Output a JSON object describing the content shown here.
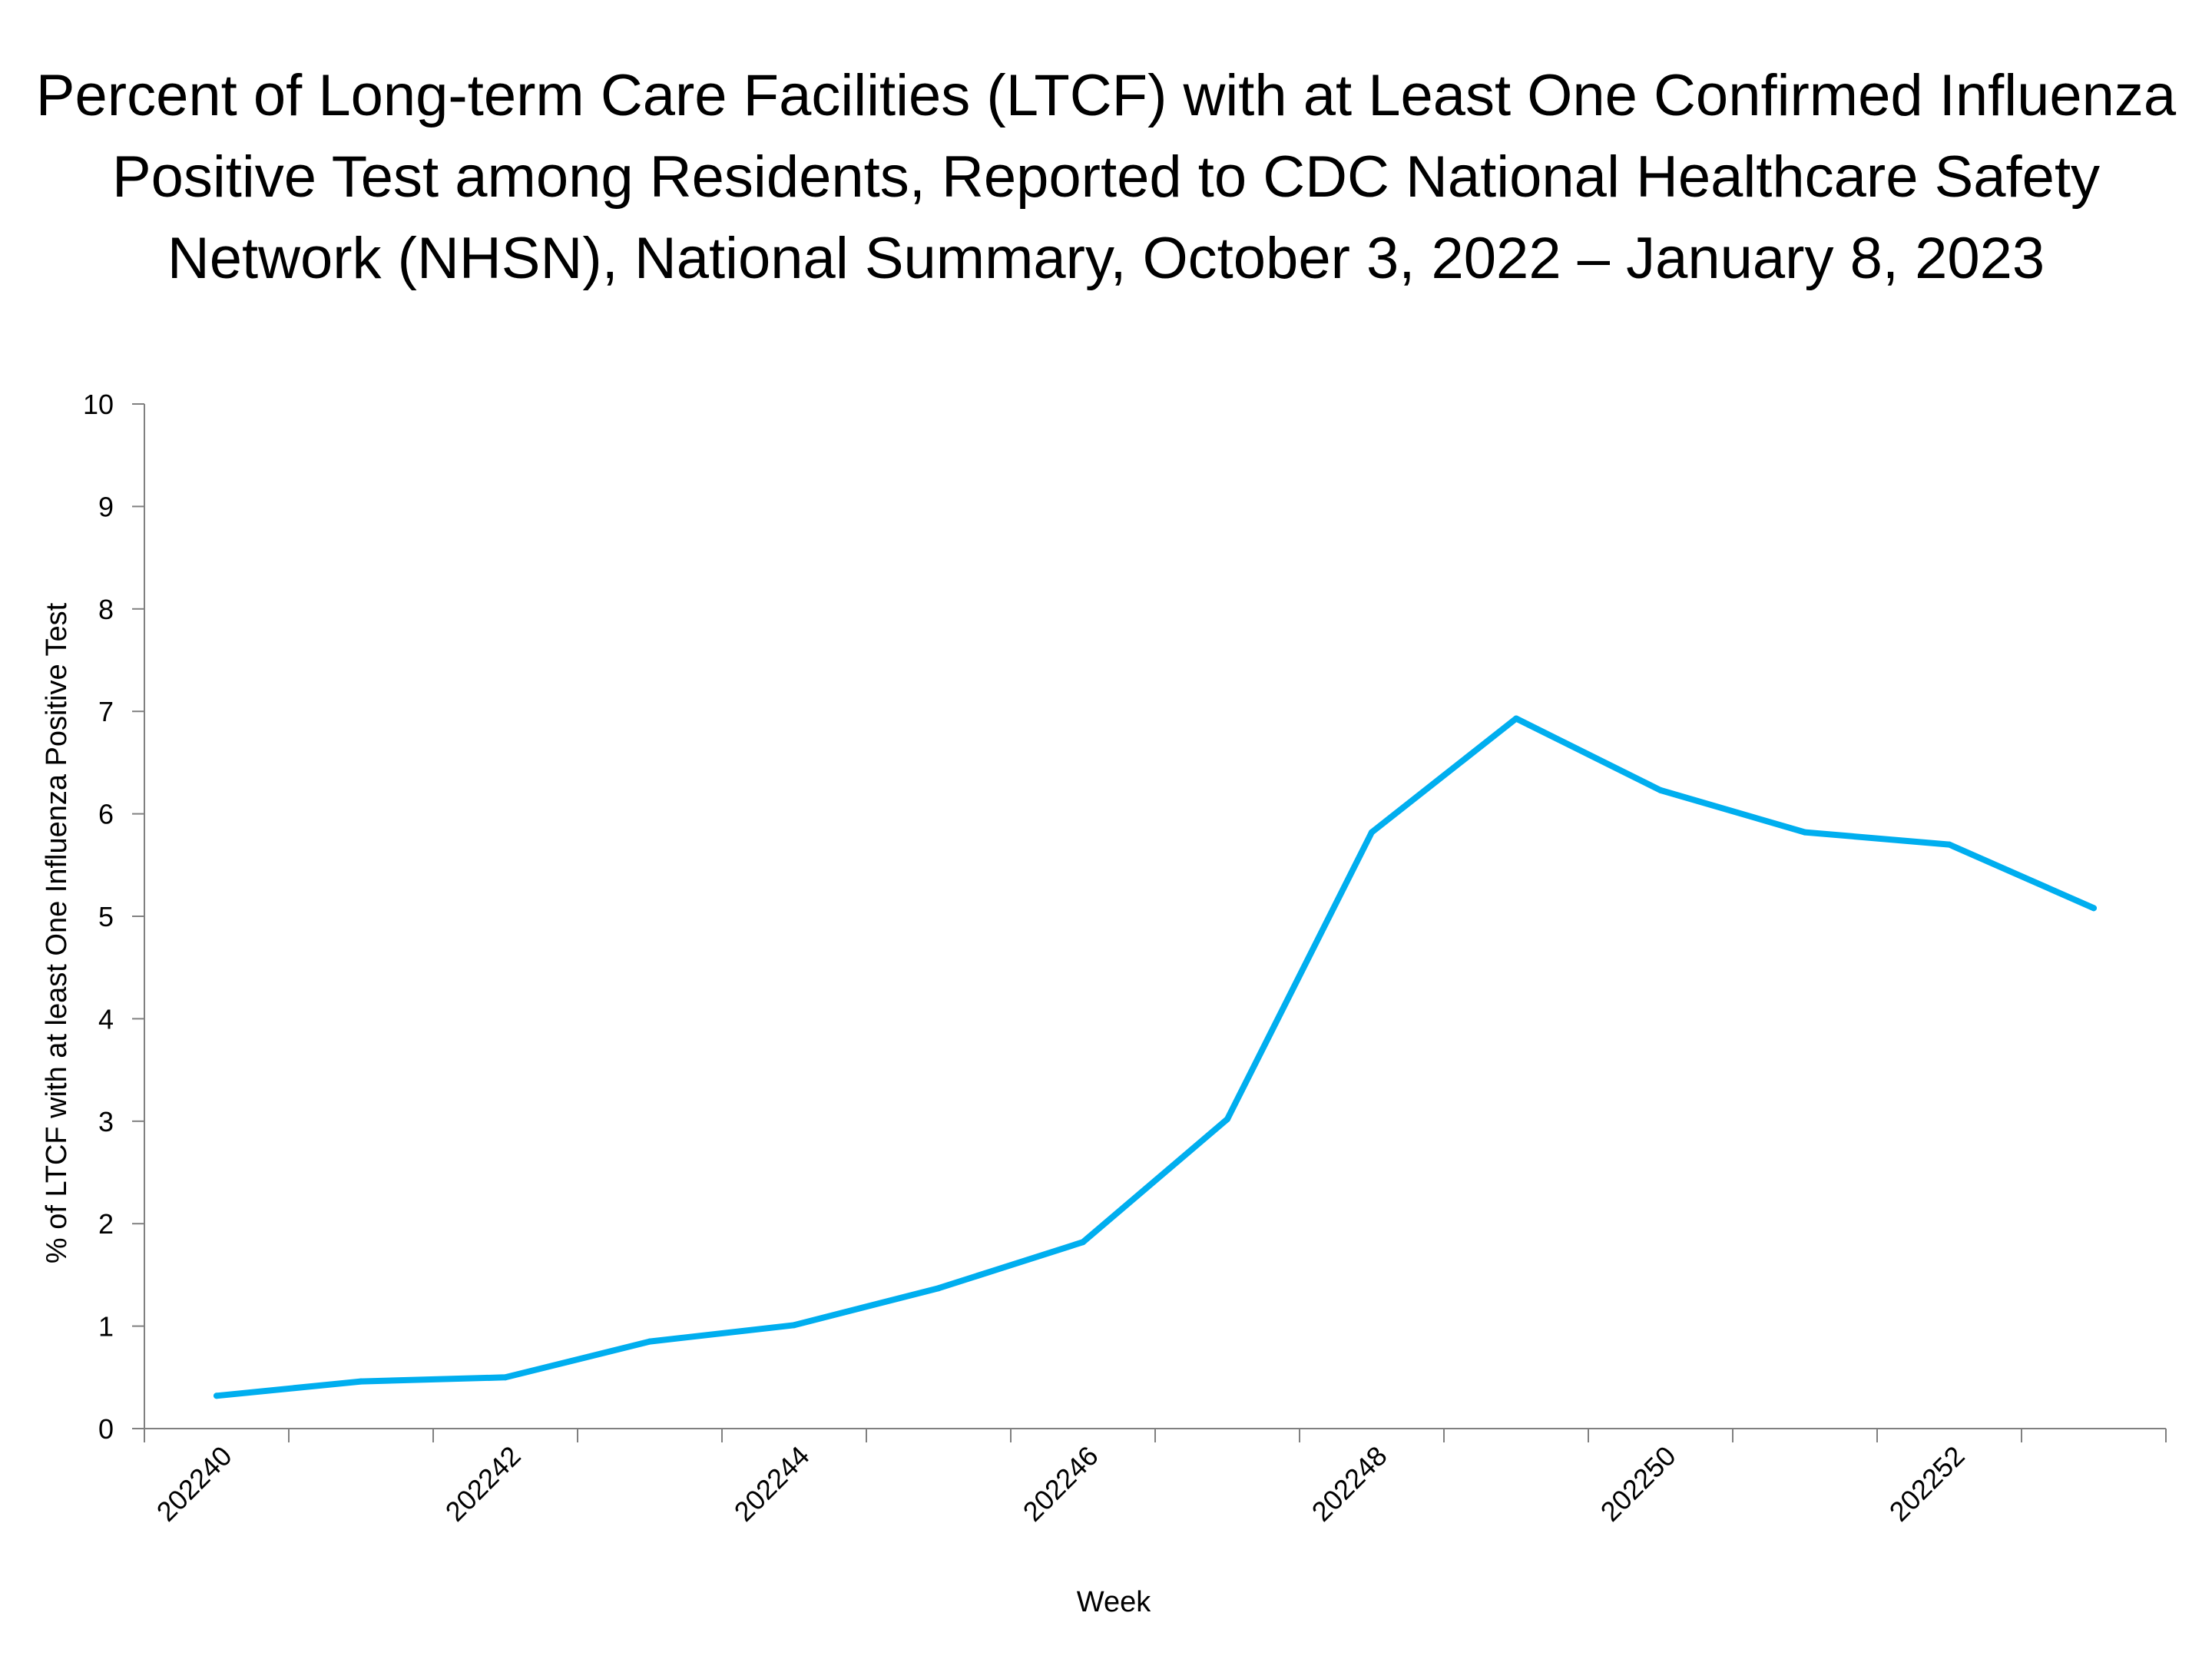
{
  "title_lines": [
    "Percent of Long-term Care Facilities (LTCF) with at Least One Confirmed Influenza",
    "Positive Test among Residents, Reported to CDC National Healthcare Safety",
    "Network (NHSN), National Summary, October 3, 2022 – January 8, 2023"
  ],
  "chart_data": {
    "type": "line",
    "title": "Percent of Long-term Care Facilities (LTCF) with at Least One Confirmed Influenza Positive Test among Residents, Reported to CDC National Healthcare Safety Network (NHSN), National Summary, October 3, 2022 – January 8, 2023",
    "xlabel": "Week",
    "ylabel": "% of LTCF with at least One Influenza Positive Test",
    "ylim": [
      0,
      10
    ],
    "yticks": [
      "0",
      "1",
      "2",
      "3",
      "4",
      "5",
      "6",
      "7",
      "8",
      "9",
      "10"
    ],
    "categories": [
      "202240",
      "202241",
      "202242",
      "202243",
      "202244",
      "202245",
      "202246",
      "202247",
      "202248",
      "202249",
      "202250",
      "202251",
      "202252",
      "202301"
    ],
    "xtick_labels": [
      "202240",
      "202242",
      "202244",
      "202246",
      "202248",
      "202250",
      "202252"
    ],
    "grid": false,
    "series": [
      {
        "name": "% of LTCF with at least One Influenza Positive Test",
        "color": "#00AEEF",
        "values": [
          0.32,
          0.46,
          0.5,
          0.85,
          1.01,
          1.37,
          1.82,
          3.02,
          5.82,
          6.93,
          6.23,
          5.82,
          5.7,
          5.08
        ]
      }
    ]
  }
}
